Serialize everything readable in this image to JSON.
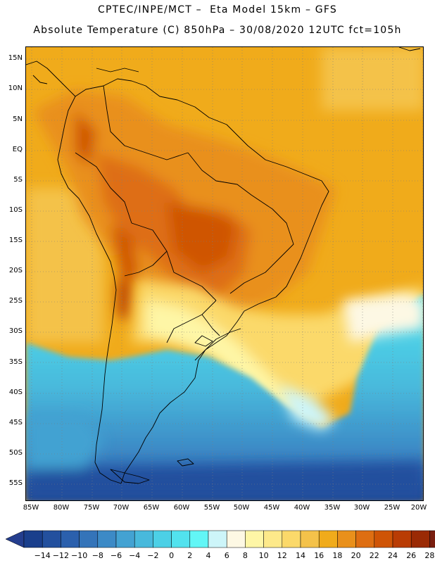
{
  "header": {
    "line1": "CPTEC/INPE/MCT –  Eta Model 15km – GFS",
    "line2": "Absolute Temperature (C) 850hPa – 30/08/2020 12UTC fct=105h"
  },
  "axes": {
    "lat_labels": [
      "15N",
      "10N",
      "5N",
      "EQ",
      "5S",
      "10S",
      "15S",
      "20S",
      "25S",
      "30S",
      "35S",
      "40S",
      "45S",
      "50S",
      "55S"
    ],
    "lon_labels": [
      "85W",
      "80W",
      "75W",
      "70W",
      "65W",
      "60W",
      "55W",
      "50W",
      "45W",
      "40W",
      "35W",
      "30W",
      "25W",
      "20W"
    ]
  },
  "colorbar": {
    "labels": [
      "-14",
      "-12",
      "-10",
      "-8",
      "-6",
      "-4",
      "-2",
      "0",
      "2",
      "4",
      "6",
      "8",
      "10",
      "12",
      "14",
      "16",
      "18",
      "20",
      "22",
      "24",
      "26",
      "28"
    ],
    "colors": [
      "#1a3f8c",
      "#23509e",
      "#2b60ad",
      "#3474b9",
      "#3c8ac6",
      "#43a2d2",
      "#48b9dc",
      "#4cd0e6",
      "#52e2ee",
      "#62f6f6",
      "#cdf5f9",
      "#fdf8e4",
      "#fef6a6",
      "#fde98a",
      "#fbd96a",
      "#f4c24a",
      "#f0ab1b",
      "#e9901b",
      "#de6e12",
      "#cf5406",
      "#b93c04",
      "#9a2a04",
      "#7a1f10"
    ],
    "under_color": "#243e8e",
    "over_color": "#8a0f32"
  },
  "map": {
    "ocean_color": "#f2ae2d",
    "land_color": "#e48b1c",
    "gridlines": "dotted"
  }
}
